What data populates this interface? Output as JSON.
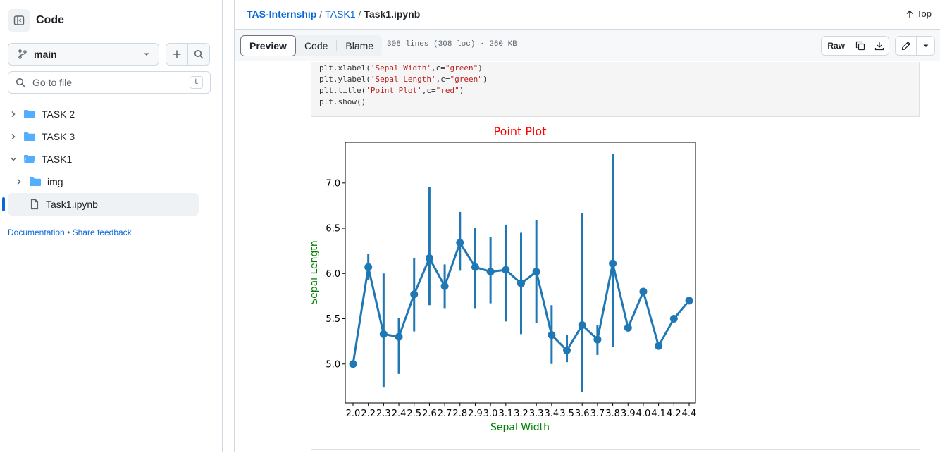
{
  "sidebar": {
    "title": "Code",
    "branch": "main",
    "goto_placeholder": "Go to file",
    "goto_kbd": "t",
    "tree": [
      {
        "label": "TASK 2",
        "type": "folder",
        "expanded": false,
        "depth": 0
      },
      {
        "label": "TASK 3",
        "type": "folder",
        "expanded": false,
        "depth": 0
      },
      {
        "label": "TASK1",
        "type": "folder",
        "expanded": true,
        "depth": 0
      },
      {
        "label": "img",
        "type": "folder",
        "expanded": false,
        "depth": 1
      },
      {
        "label": "Task1.ipynb",
        "type": "file",
        "selected": true,
        "depth": 1
      }
    ],
    "links": {
      "documentation": "Documentation",
      "separator": "•",
      "feedback": "Share feedback"
    }
  },
  "header": {
    "breadcrumb": [
      "TAS-Internship",
      "TASK1"
    ],
    "separator": "/",
    "current_file": "Task1.ipynb",
    "top_label": "Top"
  },
  "toolbar": {
    "tabs": [
      "Preview",
      "Code",
      "Blame"
    ],
    "active_tab": "Preview",
    "meta": "308 lines (308 loc) · 260 KB",
    "raw_label": "Raw"
  },
  "code": {
    "lines": [
      {
        "fn": "plt.xlabel(",
        "str": "'Sepal Width'",
        "mid": ",c=",
        "str2": "\"green\"",
        "end": ")"
      },
      {
        "fn": "plt.ylabel(",
        "str": "'Sepal Length'",
        "mid": ",c=",
        "str2": "\"green\"",
        "end": ")"
      },
      {
        "fn": "plt.title(",
        "str": "'Point Plot'",
        "mid": ",c=",
        "str2": "\"red\"",
        "end": ")"
      },
      {
        "fn": "plt.show()",
        "str": "",
        "mid": "",
        "str2": "",
        "end": ""
      }
    ]
  },
  "colors": {
    "accent": "#0969da",
    "series": "#1f77b4",
    "title": "#ff0000",
    "axis_label": "#008000"
  },
  "chart_data": {
    "type": "line",
    "title": "Point Plot",
    "xlabel": "Sepal Width",
    "ylabel": "Sepal Length",
    "categories": [
      "2.0",
      "2.2",
      "2.3",
      "2.4",
      "2.5",
      "2.6",
      "2.7",
      "2.8",
      "2.9",
      "3.0",
      "3.1",
      "3.2",
      "3.3",
      "3.4",
      "3.5",
      "3.6",
      "3.7",
      "3.8",
      "3.9",
      "4.0",
      "4.1",
      "4.2",
      "4.4"
    ],
    "values": [
      5.0,
      6.07,
      5.33,
      5.3,
      5.77,
      6.17,
      5.86,
      6.34,
      6.07,
      6.02,
      6.04,
      5.89,
      6.02,
      5.32,
      5.15,
      5.43,
      5.27,
      6.11,
      5.4,
      5.8,
      5.2,
      5.5,
      5.7
    ],
    "ci_low": [
      null,
      5.93,
      4.74,
      4.89,
      5.36,
      5.65,
      5.61,
      6.03,
      5.61,
      5.67,
      5.47,
      5.33,
      5.45,
      5.0,
      5.02,
      4.69,
      5.1,
      5.19,
      null,
      null,
      null,
      null,
      null
    ],
    "ci_high": [
      null,
      6.22,
      6.0,
      5.51,
      6.17,
      6.96,
      6.1,
      6.68,
      6.5,
      6.4,
      6.54,
      6.45,
      6.59,
      5.65,
      5.32,
      6.67,
      5.43,
      7.32,
      null,
      null,
      null,
      null,
      null
    ],
    "yticks": [
      "5.0",
      "5.5",
      "6.0",
      "6.5",
      "7.0"
    ],
    "ylim": [
      4.57,
      7.45
    ],
    "grid": false,
    "legend": "none"
  }
}
